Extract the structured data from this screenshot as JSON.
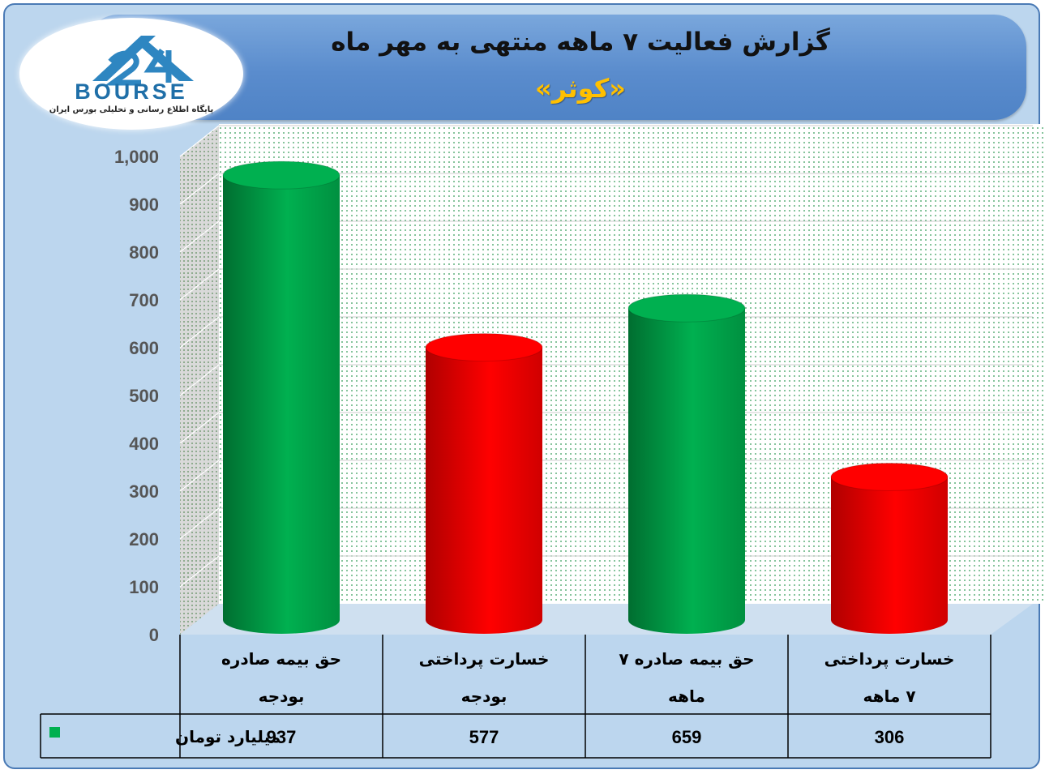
{
  "header": {
    "title": "گزارش فعالیت ۷ ماهه منتهی به مهر ماه",
    "subtitle": "«کوثر»"
  },
  "logo": {
    "text": "BOURSE",
    "tagline": "پایگاه اطلاع رسانی و تحلیلی بورس ایران"
  },
  "colors": {
    "green": "#00b050",
    "red": "#ff0000",
    "banner": "#5a8ccd",
    "background": "#bcd6ee",
    "subtitle": "#ffc000"
  },
  "chart_data": {
    "type": "bar",
    "categories": [
      [
        "حق بیمه صادره",
        "بودجه"
      ],
      [
        "خسارت پرداختی",
        "بودجه"
      ],
      [
        "حق بیمه صادره ۷",
        "ماهه"
      ],
      [
        "خسارت پرداختی",
        "۷ ماهه"
      ]
    ],
    "values": [
      937,
      577,
      659,
      306
    ],
    "bar_colors": [
      "#00b050",
      "#ff0000",
      "#00b050",
      "#ff0000"
    ],
    "value_labels": [
      "937",
      "577",
      "659",
      "306"
    ],
    "series_name": "میلیارد تومان",
    "ylim": [
      0,
      1000
    ],
    "yticks": [
      0,
      100,
      200,
      300,
      400,
      500,
      600,
      700,
      800,
      900,
      1000
    ],
    "ytick_labels": [
      "0",
      "100",
      "200",
      "300",
      "400",
      "500",
      "600",
      "700",
      "800",
      "900",
      "1,000"
    ],
    "grid": true,
    "data_table": true
  }
}
